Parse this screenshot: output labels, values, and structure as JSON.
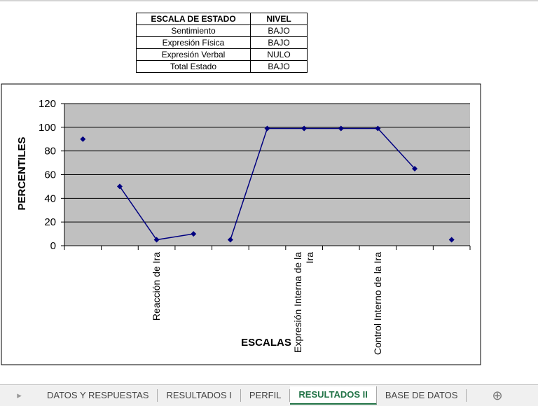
{
  "table": {
    "header": [
      "ESCALA DE ESTADO",
      "NIVEL"
    ],
    "rows": [
      [
        "Sentimiento",
        "BAJO"
      ],
      [
        "Expresión Física",
        "BAJO"
      ],
      [
        "Expresión Verbal",
        "NULO"
      ],
      [
        "Total Estado",
        "BAJO"
      ]
    ]
  },
  "chart_data": {
    "type": "line",
    "y_label": "PERCENTILES",
    "x_label": "ESCALAS",
    "categories": [
      null,
      null,
      "Reacción de Ira",
      null,
      null,
      null,
      "Expresión Interna de la Ira",
      null,
      "Control Interno de la Ira",
      null,
      null
    ],
    "series": [
      {
        "color": "#000080",
        "values": [
          90,
          null,
          null,
          null,
          null,
          null,
          null,
          null,
          null,
          null,
          null
        ]
      },
      {
        "color": "#000080",
        "values": [
          null,
          50,
          5,
          10,
          null,
          null,
          null,
          null,
          null,
          null,
          null
        ]
      },
      {
        "color": "#000080",
        "values": [
          null,
          null,
          null,
          null,
          5,
          99,
          99,
          99,
          99,
          65,
          null
        ]
      },
      {
        "color": "#000080",
        "values": [
          null,
          null,
          null,
          null,
          null,
          null,
          null,
          null,
          null,
          null,
          5
        ]
      }
    ],
    "ylim": [
      0,
      120
    ],
    "yticks": [
      0,
      20,
      40,
      60,
      80,
      100,
      120
    ],
    "grid": true,
    "plot_background": "#c0c0c0"
  },
  "tabs": [
    "DATOS Y RESPUESTAS",
    "RESULTADOS I",
    "PERFIL",
    "RESULTADOS II",
    "BASE DE DATOS"
  ],
  "active_tab": 3
}
